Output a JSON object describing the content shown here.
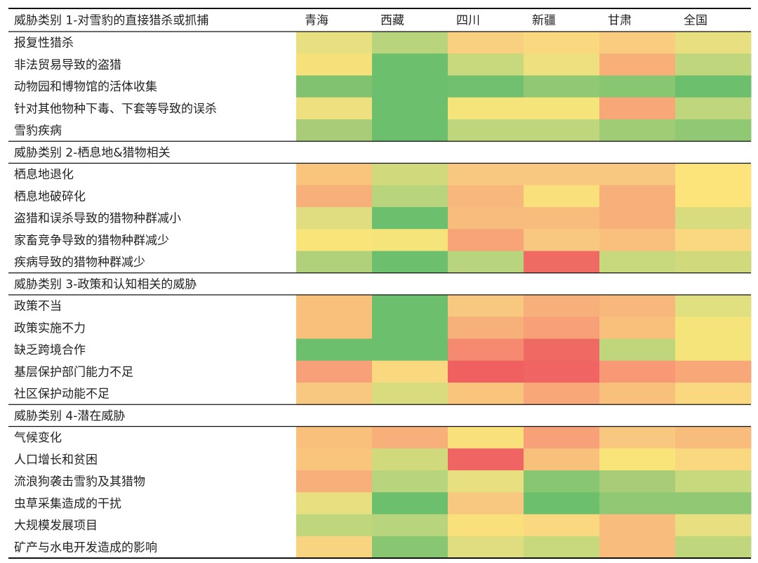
{
  "table": {
    "columns": [
      "青海",
      "西藏",
      "四川",
      "新疆",
      "甘肃",
      "全国"
    ],
    "sections": [
      {
        "title": "威胁类别 1-对雪豹的直接猎杀或抓捕",
        "rows": [
          {
            "label": "报复性猎杀",
            "colors": [
              "#e8df80",
              "#b8d47c",
              "#f9d080",
              "#f9d880",
              "#f9cc80",
              "#e8e080"
            ]
          },
          {
            "label": "非法贸易导致的盗猎",
            "colors": [
              "#f5e07a",
              "#6cbf6c",
              "#c8d87c",
              "#eee07e",
              "#f8b078",
              "#c0d67c"
            ]
          },
          {
            "label": "动物园和博物馆的活体收集",
            "colors": [
              "#80c270",
              "#6cbf6c",
              "#70c070",
              "#90c874",
              "#88c672",
              "#6cbf6c"
            ]
          },
          {
            "label": "针对其他物种下毒、下套等导致的误杀",
            "colors": [
              "#eee07e",
              "#6cbf6c",
              "#f5e47a",
              "#f5e47a",
              "#f8a878",
              "#c0d67c"
            ]
          },
          {
            "label": "雪豹疾病",
            "colors": [
              "#a8cc78",
              "#6cbf6c",
              "#c0d67c",
              "#c0d67c",
              "#a0cc76",
              "#90c874"
            ]
          }
        ]
      },
      {
        "title": "威胁类别 2-栖息地&猎物相关",
        "rows": [
          {
            "label": "栖息地退化",
            "colors": [
              "#f9c47c",
              "#d0da7c",
              "#f9c880",
              "#f9c880",
              "#f9c880",
              "#fce47a"
            ]
          },
          {
            "label": "栖息地破碎化",
            "colors": [
              "#f8b07a",
              "#b8d47c",
              "#f8b87c",
              "#f9e07a",
              "#f8b07a",
              "#fce47a"
            ]
          },
          {
            "label": "盗猎和误杀导致的猎物种群减小",
            "colors": [
              "#e0dc80",
              "#6cbf6c",
              "#f8bc7c",
              "#f8bc7c",
              "#f8b07a",
              "#d8dc7e"
            ]
          },
          {
            "label": "家畜竞争导致的猎物种群减少",
            "colors": [
              "#f9e47a",
              "#f5e47a",
              "#f8a478",
              "#f9c880",
              "#f8c07c",
              "#f9d880"
            ]
          },
          {
            "label": "疾病导致的猎物种群减少",
            "colors": [
              "#b0d07a",
              "#6cbf6c",
              "#b8d47c",
              "#f06a64",
              "#c8d87c",
              "#d0da7c"
            ]
          }
        ]
      },
      {
        "title": "威胁类别 3-政策和认知相关的威胁",
        "rows": [
          {
            "label": "政策不当",
            "colors": [
              "#f9c07c",
              "#6cbf6c",
              "#f9c880",
              "#f8b07a",
              "#f8b87c",
              "#e0e080"
            ]
          },
          {
            "label": "政策实施不力",
            "colors": [
              "#f9c07c",
              "#6cbf6c",
              "#f8b07a",
              "#f8a078",
              "#f9c07c",
              "#f5e47a"
            ]
          },
          {
            "label": "缺乏跨境合作",
            "colors": [
              "#6cbf6c",
              "#6cbf6c",
              "#f58a70",
              "#f06a64",
              "#c0d67c",
              "#f5e47a"
            ]
          },
          {
            "label": "基层保护部门能力不足",
            "colors": [
              "#f8a078",
              "#f9d880",
              "#f06060",
              "#f06464",
              "#f89874",
              "#f8a878"
            ]
          },
          {
            "label": "社区保护动能不足",
            "colors": [
              "#f9c880",
              "#d8dc7e",
              "#f9c47c",
              "#f8a878",
              "#f9c07c",
              "#f9d880"
            ]
          }
        ]
      },
      {
        "title": "威胁类别 4-潜在威胁",
        "rows": [
          {
            "label": "气候变化",
            "colors": [
              "#f9c07c",
              "#f8b07a",
              "#f9e07a",
              "#f8a078",
              "#f9c880",
              "#f8bc7c"
            ]
          },
          {
            "label": "人口增长和贫困",
            "colors": [
              "#f9c47c",
              "#d0da7c",
              "#f06464",
              "#f9c07c",
              "#f9e47a",
              "#f9d880"
            ]
          },
          {
            "label": "流浪狗袭击雪豹及其猎物",
            "colors": [
              "#f8b07a",
              "#b8d47c",
              "#e8e080",
              "#88c672",
              "#a8cc78",
              "#c8d87c"
            ]
          },
          {
            "label": "虫草采集造成的干扰",
            "colors": [
              "#e8e080",
              "#6cbf6c",
              "#f9c880",
              "#6cbf6c",
              "#90c874",
              "#90c874"
            ]
          },
          {
            "label": "大规模发展项目",
            "colors": [
              "#c0d67c",
              "#b8d47c",
              "#f9e07a",
              "#f9d880",
              "#f8bc7c",
              "#e8e080"
            ]
          },
          {
            "label": "矿产与水电开发造成的影响",
            "colors": [
              "#f9d480",
              "#88c672",
              "#e0dc80",
              "#c8d87c",
              "#f8bc7c",
              "#c0d67c"
            ]
          }
        ]
      }
    ]
  }
}
